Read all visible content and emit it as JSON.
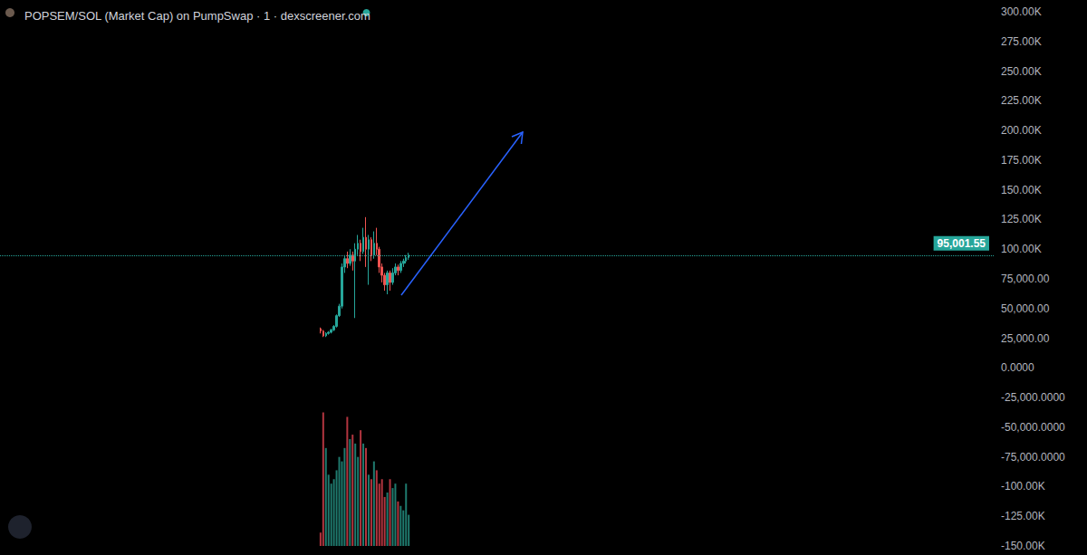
{
  "chart_data": {
    "type": "candlestick",
    "title": "POPSEM/SOL (Market Cap) on PumpSwap · 1 · dexscreener.com",
    "x": [
      0,
      1,
      2,
      3,
      4,
      5,
      6,
      7,
      8,
      9,
      10,
      11,
      12,
      13,
      14,
      15,
      16,
      17,
      18,
      19,
      20,
      21,
      22,
      23,
      24,
      25,
      26,
      27,
      28,
      29,
      30,
      31,
      32,
      33
    ],
    "xlim": [
      -120,
      252
    ],
    "ylim": [
      -150000,
      300000
    ],
    "yticks": [
      {
        "value": -150000,
        "label": "-150.00K"
      },
      {
        "value": -125000,
        "label": "-125.00K"
      },
      {
        "value": -100000,
        "label": "-100.00K"
      },
      {
        "value": -75000,
        "label": "-75,000.0000"
      },
      {
        "value": -50000,
        "label": "-50,000.0000"
      },
      {
        "value": -25000,
        "label": "-25,000.0000"
      },
      {
        "value": 0,
        "label": "0.0000"
      },
      {
        "value": 25000,
        "label": "25,000.00"
      },
      {
        "value": 50000,
        "label": "50,000.00"
      },
      {
        "value": 75000,
        "label": "75,000.00"
      },
      {
        "value": 100000,
        "label": "100.00K"
      },
      {
        "value": 125000,
        "label": "125.00K"
      },
      {
        "value": 150000,
        "label": "150.00K"
      },
      {
        "value": 175000,
        "label": "175.00K"
      },
      {
        "value": 200000,
        "label": "200.00K"
      },
      {
        "value": 225000,
        "label": "225.00K"
      },
      {
        "value": 250000,
        "label": "250.00K"
      },
      {
        "value": 275000,
        "label": "275.00K"
      },
      {
        "value": 300000,
        "label": "300.00K"
      }
    ],
    "y2lim": [
      0,
      600
    ],
    "tick_labels": "y",
    "grid": false,
    "series": [
      {
        "type": "candlestick",
        "open": [
          33000,
          31000,
          27000,
          29000,
          30000,
          32000,
          35000,
          44000,
          52000,
          85000,
          92000,
          88000,
          95000,
          90000,
          100000,
          105000,
          98000,
          110000,
          100000,
          108000,
          95000,
          105000,
          100000,
          85000,
          78000,
          70000,
          80000,
          72000,
          80000,
          85000,
          82000,
          88000,
          90000,
          93000
        ],
        "close": [
          31000,
          27000,
          29000,
          30000,
          32000,
          35000,
          44000,
          52000,
          85000,
          92000,
          88000,
          95000,
          90000,
          100000,
          105000,
          98000,
          110000,
          100000,
          108000,
          95000,
          105000,
          100000,
          85000,
          78000,
          70000,
          80000,
          72000,
          80000,
          85000,
          82000,
          88000,
          90000,
          93000,
          95001.55
        ],
        "low": [
          29000,
          26000,
          26000,
          28000,
          29000,
          31000,
          34000,
          43000,
          50000,
          80000,
          84000,
          86000,
          82000,
          42000,
          95000,
          90000,
          96000,
          85000,
          70000,
          90000,
          92000,
          95000,
          80000,
          72000,
          65000,
          62000,
          65000,
          70000,
          78000,
          78000,
          80000,
          85000,
          88000,
          91000
        ],
        "high": [
          34000,
          32000,
          30000,
          31000,
          33000,
          36000,
          45000,
          54000,
          88000,
          95000,
          98000,
          100000,
          98000,
          105000,
          112000,
          108000,
          118000,
          127000,
          112000,
          110000,
          115000,
          118000,
          102000,
          88000,
          80000,
          82000,
          82000,
          84000,
          88000,
          87000,
          90000,
          92000,
          95000,
          97000
        ],
        "colors": [
          "#ef5350",
          "#ef5350",
          "#26a69a",
          "#26a69a",
          "#26a69a",
          "#26a69a",
          "#26a69a",
          "#26a69a",
          "#26a69a",
          "#26a69a",
          "#ef5350",
          "#26a69a",
          "#ef5350",
          "#26a69a",
          "#26a69a",
          "#ef5350",
          "#26a69a",
          "#ef5350",
          "#26a69a",
          "#ef5350",
          "#26a69a",
          "#ef5350",
          "#ef5350",
          "#ef5350",
          "#ef5350",
          "#26a69a",
          "#ef5350",
          "#26a69a",
          "#26a69a",
          "#ef5350",
          "#26a69a",
          "#26a69a",
          "#26a69a",
          "#26a69a"
        ]
      },
      {
        "type": "bar",
        "axis": "y2",
        "values": [
          15,
          150,
          110,
          80,
          70,
          75,
          85,
          100,
          95,
          110,
          145,
          120,
          125,
          115,
          100,
          130,
          115,
          110,
          80,
          75,
          95,
          85,
          70,
          75,
          55,
          60,
          75,
          65,
          70,
          50,
          45,
          40,
          70,
          35
        ],
        "colors": [
          "#b2353f",
          "#b2353f",
          "#1f7a6e",
          "#1f7a6e",
          "#1f7a6e",
          "#1f7a6e",
          "#1f7a6e",
          "#1f7a6e",
          "#1f7a6e",
          "#1f7a6e",
          "#b2353f",
          "#1f7a6e",
          "#b2353f",
          "#1f7a6e",
          "#1f7a6e",
          "#b2353f",
          "#1f7a6e",
          "#b2353f",
          "#1f7a6e",
          "#b2353f",
          "#1f7a6e",
          "#b2353f",
          "#b2353f",
          "#b2353f",
          "#b2353f",
          "#1f7a6e",
          "#b2353f",
          "#1f7a6e",
          "#1f7a6e",
          "#b2353f",
          "#1f7a6e",
          "#1f7a6e",
          "#1f7a6e",
          "#1f7a6e"
        ]
      }
    ],
    "price_line": {
      "value": 95001.55,
      "label": "95,001.55",
      "color": "#26a69a"
    }
  }
}
